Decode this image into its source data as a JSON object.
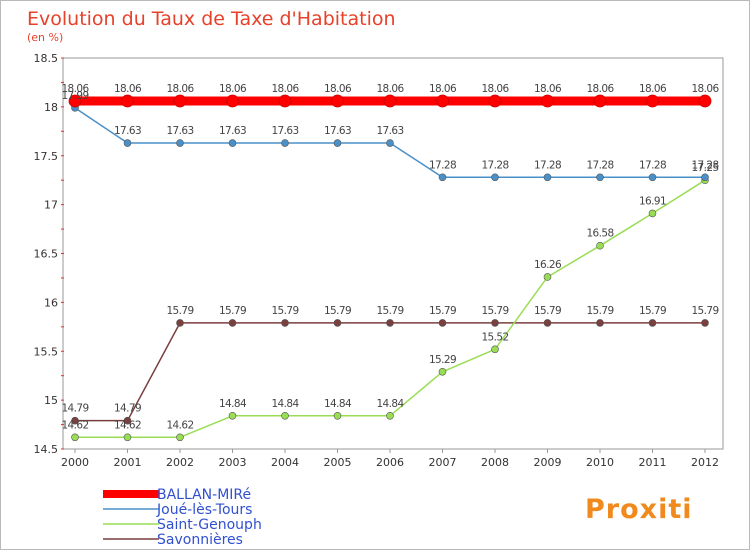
{
  "title": "Evolution du Taux de Taxe d'Habitation",
  "subtitle": "(en %)",
  "logo_text": "Proxiti",
  "chart_data": {
    "type": "line",
    "title": "Evolution du Taux de Taxe d'Habitation",
    "subtitle": "(en %)",
    "xlabel": "",
    "ylabel": "",
    "x": [
      "2000",
      "2001",
      "2002",
      "2003",
      "2004",
      "2005",
      "2006",
      "2007",
      "2008",
      "2009",
      "2010",
      "2011",
      "2012"
    ],
    "ylim": [
      14.5,
      18.5
    ],
    "yticks": [
      "14.5",
      "15",
      "15.5",
      "16",
      "16.5",
      "17",
      "17.5",
      "18",
      "18.5"
    ],
    "grid": false,
    "legend_position": "bottom-left",
    "series": [
      {
        "name": "BALLAN-MIRé",
        "color": "#ff0000",
        "values": [
          18.06,
          18.06,
          18.06,
          18.06,
          18.06,
          18.06,
          18.06,
          18.06,
          18.06,
          18.06,
          18.06,
          18.06,
          18.06
        ],
        "labels": [
          "18.06",
          "18.06",
          "18.06",
          "18.06",
          "18.06",
          "18.06",
          "18.06",
          "18.06",
          "18.06",
          "18.06",
          "18.06",
          "18.06",
          "18.06"
        ]
      },
      {
        "name": "Joué-lès-Tours",
        "color": "#4a90c8",
        "values": [
          17.99,
          17.63,
          17.63,
          17.63,
          17.63,
          17.63,
          17.63,
          17.28,
          17.28,
          17.28,
          17.28,
          17.28,
          17.28
        ],
        "labels": [
          "17.99",
          "17.63",
          "17.63",
          "17.63",
          "17.63",
          "17.63",
          "17.63",
          "17.28",
          "17.28",
          "17.28",
          "17.28",
          "17.28",
          "17.28"
        ]
      },
      {
        "name": "Saint-Genouph",
        "color": "#99dd55",
        "values": [
          14.62,
          14.62,
          14.62,
          14.84,
          14.84,
          14.84,
          14.84,
          15.29,
          15.52,
          16.26,
          16.58,
          16.91,
          17.25
        ],
        "labels": [
          "14.62",
          "14.62",
          "14.62",
          "14.84",
          "14.84",
          "14.84",
          "14.84",
          "15.29",
          "15.52",
          "16.26",
          "16.58",
          "16.91",
          "17.25"
        ]
      },
      {
        "name": "Savonnières",
        "color": "#7a3f3f",
        "values": [
          14.79,
          14.79,
          15.79,
          15.79,
          15.79,
          15.79,
          15.79,
          15.79,
          15.79,
          15.79,
          15.79,
          15.79,
          15.79
        ],
        "labels": [
          "14.79",
          "14.79",
          "15.79",
          "15.79",
          "15.79",
          "15.79",
          "15.79",
          "15.79",
          "15.79",
          "15.79",
          "15.79",
          "15.79",
          "15.79"
        ]
      }
    ]
  }
}
